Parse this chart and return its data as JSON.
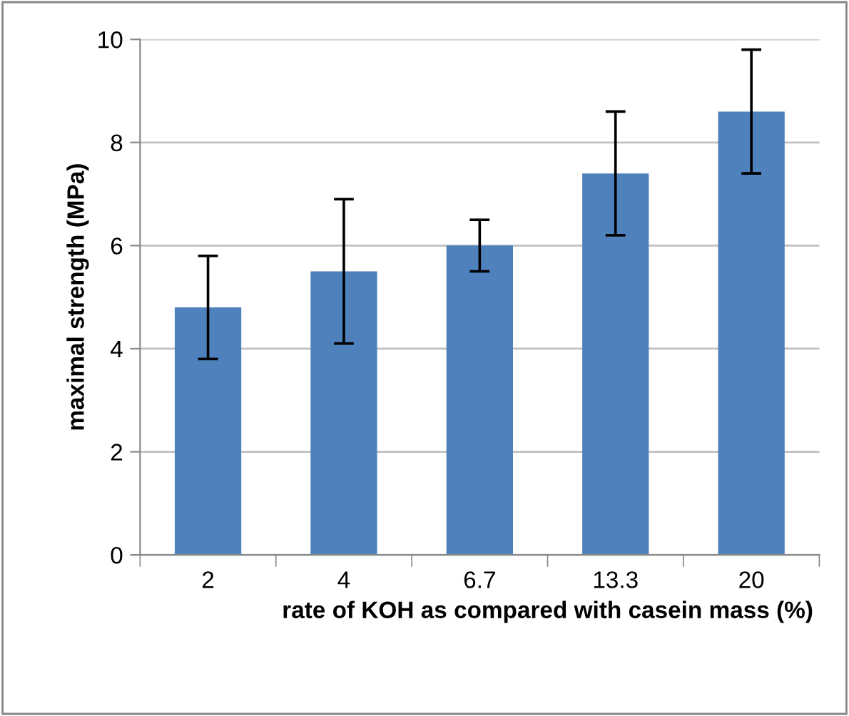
{
  "chart_data": {
    "type": "bar",
    "xlabel": "rate of KOH as compared with casein mass (%)",
    "ylabel": "maximal strength (MPa)",
    "categories": [
      "2",
      "4",
      "6.7",
      "13.3",
      "20"
    ],
    "values": [
      4.8,
      5.5,
      6.0,
      7.4,
      8.6
    ],
    "errors": [
      1.0,
      1.4,
      0.5,
      1.2,
      1.2
    ],
    "color": "#4f81bd",
    "ylim": [
      0,
      10
    ],
    "yticks": [
      0,
      2,
      4,
      6,
      8,
      10
    ],
    "grid": "y",
    "legend": false
  }
}
